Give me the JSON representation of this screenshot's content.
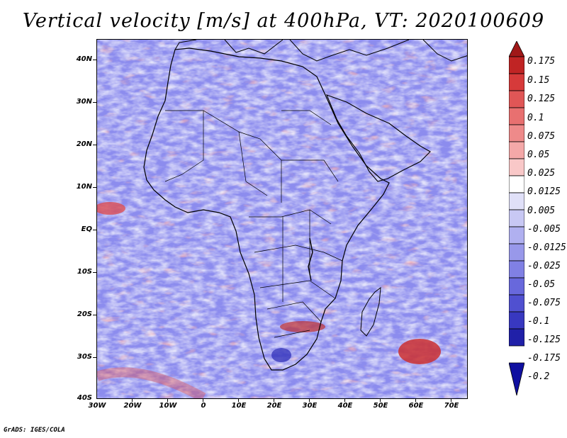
{
  "title": "Vertical velocity [m/s] at 400hPa, VT: 2020100609",
  "footer": "GrADS: IGES/COLA",
  "lat_labels": [
    "40N",
    "30N",
    "20N",
    "10N",
    "EQ",
    "10S",
    "20S",
    "30S",
    "40S"
  ],
  "lon_labels": [
    "30W",
    "20W",
    "10W",
    "0",
    "10E",
    "20E",
    "30E",
    "40E",
    "50E",
    "60E",
    "70E"
  ],
  "colorbar": {
    "labels": [
      "0.175",
      "0.15",
      "0.125",
      "0.1",
      "0.075",
      "0.05",
      "0.025",
      "0.0125",
      "0.005",
      "-0.005",
      "-0.0125",
      "-0.025",
      "-0.05",
      "-0.075",
      "-0.1",
      "-0.125",
      "-0.175",
      "-0.2"
    ],
    "colors": [
      "#a01818",
      "#c02424",
      "#d63a3a",
      "#e05656",
      "#e87070",
      "#ee8a8a",
      "#f4a8a8",
      "#f9c8c8",
      "#ffffff",
      "#e0e0f8",
      "#c8c8f4",
      "#b0b0f0",
      "#9898ea",
      "#8080e4",
      "#6868dc",
      "#5050d0",
      "#3838c0",
      "#2020a8",
      "#1010a0"
    ]
  },
  "colors": {
    "positive": "#e04848",
    "negative": "#6464e6",
    "land_line": "#000000"
  }
}
